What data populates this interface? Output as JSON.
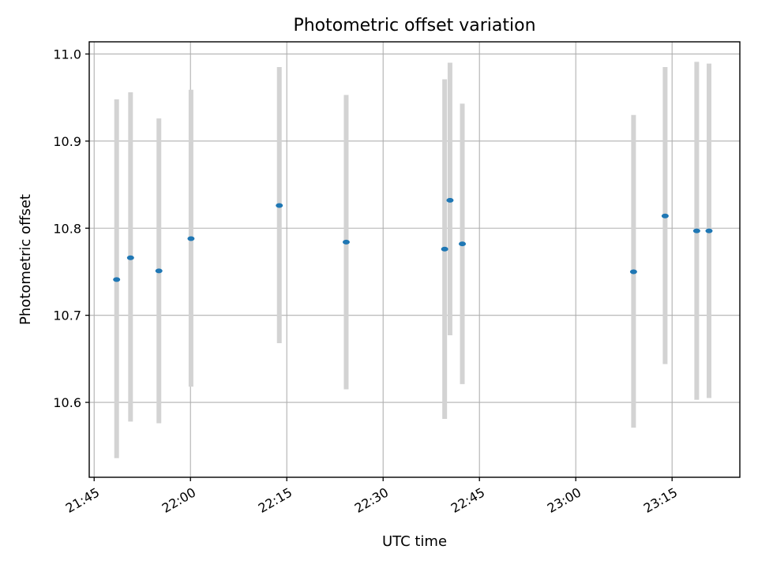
{
  "chart_data": {
    "type": "scatter",
    "title": "Photometric offset variation",
    "xlabel": "UTC time",
    "ylabel": "Photometric offset",
    "xlim": [
      "21:44:14",
      "23:25:33"
    ],
    "ylim": [
      10.514,
      11.014
    ],
    "x_ticks": [
      "21:45",
      "22:00",
      "22:15",
      "22:30",
      "22:45",
      "23:00",
      "23:15"
    ],
    "y_ticks": [
      "10.6",
      "10.7",
      "10.8",
      "10.9",
      "11.0"
    ],
    "grid": true,
    "legend": "none",
    "point_color": "#1f77b4",
    "errorbar_color": "#d3d3d3",
    "points": [
      {
        "x": "21:48:30",
        "y": 10.741,
        "y_low": 10.536,
        "y_high": 10.948
      },
      {
        "x": "21:50:40",
        "y": 10.766,
        "y_low": 10.578,
        "y_high": 10.956
      },
      {
        "x": "21:55:05",
        "y": 10.751,
        "y_low": 10.576,
        "y_high": 10.926
      },
      {
        "x": "22:00:05",
        "y": 10.788,
        "y_low": 10.618,
        "y_high": 10.959
      },
      {
        "x": "22:13:50",
        "y": 10.826,
        "y_low": 10.668,
        "y_high": 10.985
      },
      {
        "x": "22:24:15",
        "y": 10.784,
        "y_low": 10.615,
        "y_high": 10.953
      },
      {
        "x": "22:39:35",
        "y": 10.776,
        "y_low": 10.581,
        "y_high": 10.971
      },
      {
        "x": "22:40:25",
        "y": 10.832,
        "y_low": 10.677,
        "y_high": 10.99
      },
      {
        "x": "22:42:20",
        "y": 10.782,
        "y_low": 10.621,
        "y_high": 10.943
      },
      {
        "x": "23:09:00",
        "y": 10.75,
        "y_low": 10.571,
        "y_high": 10.93
      },
      {
        "x": "23:13:55",
        "y": 10.814,
        "y_low": 10.644,
        "y_high": 10.985
      },
      {
        "x": "23:18:50",
        "y": 10.797,
        "y_low": 10.603,
        "y_high": 10.991
      },
      {
        "x": "23:20:45",
        "y": 10.797,
        "y_low": 10.605,
        "y_high": 10.989
      }
    ]
  }
}
